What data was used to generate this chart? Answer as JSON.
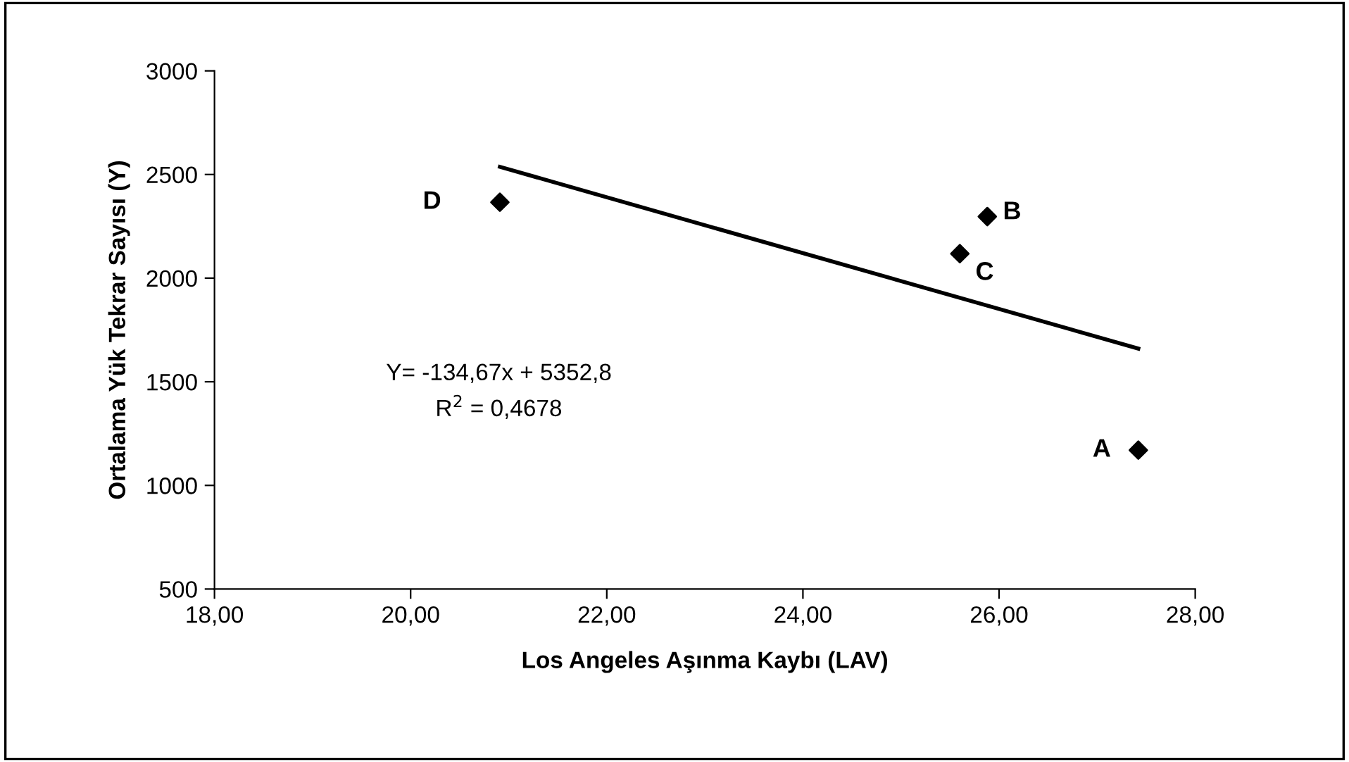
{
  "chart_data": {
    "type": "scatter",
    "xlabel": "Los Angeles Aşınma Kaybı (LAV)",
    "ylabel": "Ortalama Yük Tekrar Sayısı (Y)",
    "xlim": [
      18,
      28
    ],
    "xticks": [
      {
        "value": 18,
        "label": "18,00"
      },
      {
        "value": 20,
        "label": "20,00"
      },
      {
        "value": 22,
        "label": "22,00"
      },
      {
        "value": 24,
        "label": "24,00"
      },
      {
        "value": 26,
        "label": "26,00"
      },
      {
        "value": 28,
        "label": "28,00"
      }
    ],
    "ylim": [
      500,
      3000
    ],
    "yticks": [
      500,
      1000,
      1500,
      2000,
      2500,
      3000
    ],
    "grid": false,
    "legend": false,
    "marker": "diamond",
    "series": [
      {
        "color": "#000000",
        "x": [
          27.42,
          25.88,
          25.6,
          20.91
        ],
        "values": [
          1170,
          2297,
          2118,
          2366
        ]
      },
      {
        "type": "line",
        "color": "#000000",
        "x": [
          20.91,
          27.42
        ],
        "values": [
          2537,
          1660
        ],
        "marker": "none",
        "line_style": "solid"
      }
    ],
    "annotations": [
      {
        "text": "A",
        "x": 27.42,
        "y": 1170
      },
      {
        "text": "B",
        "x": 25.88,
        "y": 2297
      },
      {
        "text": "C",
        "x": 25.6,
        "y": 2118
      },
      {
        "text": "D",
        "x": 20.91,
        "y": 2366
      },
      "Y= -134,67x + 5352,8\nR$^{2}$ = 0,4678"
    ]
  }
}
